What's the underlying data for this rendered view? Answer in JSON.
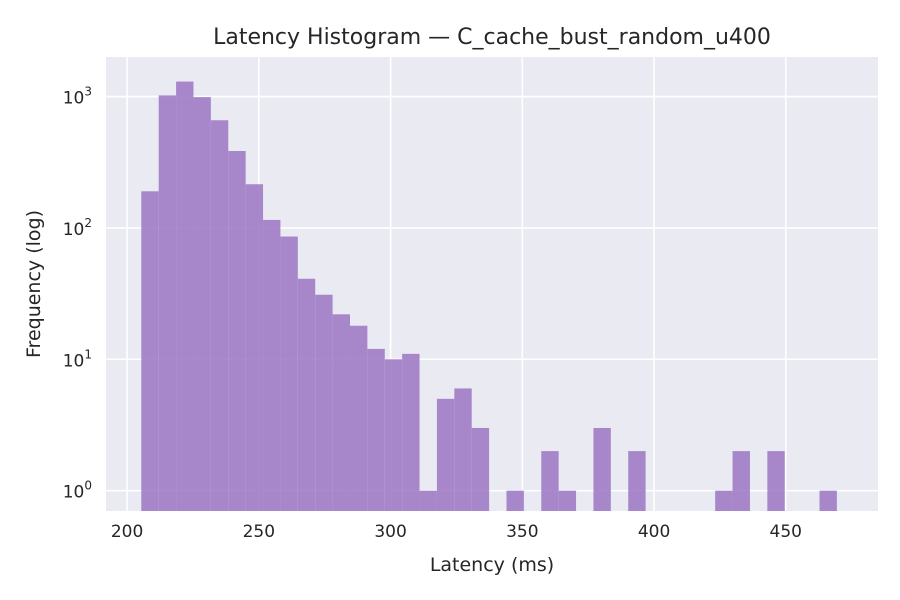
{
  "chart_data": {
    "type": "bar",
    "title": "Latency Histogram — C_cache_bust_random_u400",
    "xlabel": "Latency (ms)",
    "ylabel": "Frequency (log)",
    "xlim": [
      192,
      485
    ],
    "ylim": [
      0.7,
      2000
    ],
    "yscale": "log",
    "grid": true,
    "x_ticks": [
      200,
      250,
      300,
      350,
      400,
      450
    ],
    "y_ticks": [
      {
        "value": 1,
        "base": "10",
        "exp": "0"
      },
      {
        "value": 10,
        "base": "10",
        "exp": "1"
      },
      {
        "value": 100,
        "base": "10",
        "exp": "2"
      },
      {
        "value": 1000,
        "base": "10",
        "exp": "3"
      }
    ],
    "bin_width": 6.6,
    "bins": [
      {
        "start": 205.4,
        "count": 190
      },
      {
        "start": 212.0,
        "count": 1020
      },
      {
        "start": 218.6,
        "count": 1300
      },
      {
        "start": 225.2,
        "count": 990
      },
      {
        "start": 231.8,
        "count": 660
      },
      {
        "start": 238.4,
        "count": 385
      },
      {
        "start": 245.0,
        "count": 215
      },
      {
        "start": 251.6,
        "count": 115
      },
      {
        "start": 258.2,
        "count": 86
      },
      {
        "start": 264.8,
        "count": 41
      },
      {
        "start": 271.4,
        "count": 31
      },
      {
        "start": 278.0,
        "count": 22
      },
      {
        "start": 284.6,
        "count": 18
      },
      {
        "start": 291.2,
        "count": 12
      },
      {
        "start": 297.8,
        "count": 10
      },
      {
        "start": 304.4,
        "count": 11
      },
      {
        "start": 311.0,
        "count": 1
      },
      {
        "start": 317.6,
        "count": 5
      },
      {
        "start": 324.2,
        "count": 6
      },
      {
        "start": 330.8,
        "count": 3
      },
      {
        "start": 344.0,
        "count": 1
      },
      {
        "start": 357.2,
        "count": 2
      },
      {
        "start": 363.8,
        "count": 1
      },
      {
        "start": 377.0,
        "count": 3
      },
      {
        "start": 390.2,
        "count": 2
      },
      {
        "start": 423.2,
        "count": 1
      },
      {
        "start": 429.8,
        "count": 2
      },
      {
        "start": 443.0,
        "count": 2
      },
      {
        "start": 462.8,
        "count": 1
      }
    ],
    "colors": {
      "bar": "#a07cc5",
      "plot_background": "#eaeaf2",
      "grid": "#ffffff"
    }
  }
}
